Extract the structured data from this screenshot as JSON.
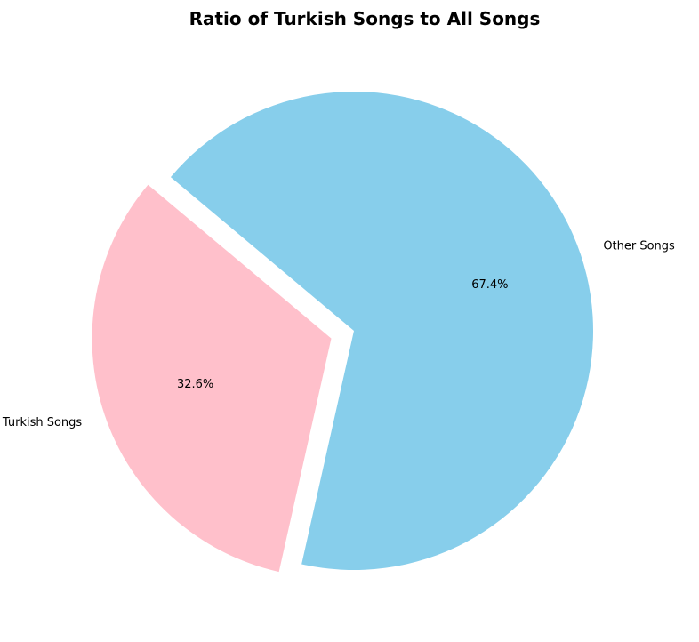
{
  "chart_data": {
    "type": "pie",
    "title": "Ratio of Turkish Songs to All Songs",
    "slices": [
      {
        "label": "Turkish Songs",
        "value": 32.6,
        "pct_label": "32.6%",
        "color": "#FFC0CB",
        "exploded": true
      },
      {
        "label": "Other Songs",
        "value": 67.4,
        "pct_label": "67.4%",
        "color": "#87CEEB",
        "exploded": false
      }
    ],
    "legend": "none"
  }
}
